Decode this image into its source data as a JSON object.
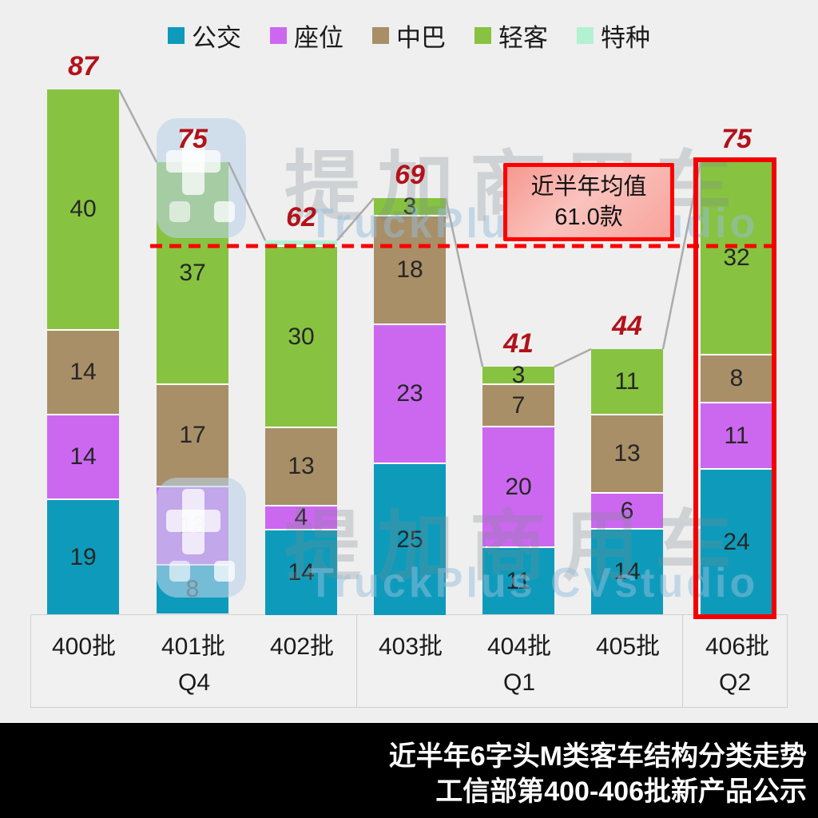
{
  "chart_data": {
    "type": "bar",
    "subtype": "stacked-vertical",
    "categories": [
      "400批",
      "401批",
      "402批",
      "403批",
      "404批",
      "405批",
      "406批"
    ],
    "series": [
      {
        "name": "公交",
        "color": "#0E9BBB",
        "values": [
          19,
          8,
          14,
          25,
          11,
          14,
          24
        ]
      },
      {
        "name": "座位",
        "color": "#CC68F0",
        "values": [
          14,
          13,
          4,
          23,
          20,
          6,
          11
        ]
      },
      {
        "name": "中巴",
        "color": "#A88F67",
        "values": [
          14,
          17,
          13,
          18,
          7,
          13,
          8
        ]
      },
      {
        "name": "轻客",
        "color": "#87C340",
        "values": [
          40,
          37,
          30,
          3,
          3,
          11,
          32
        ]
      },
      {
        "name": "特种",
        "color": "#B4F0D2",
        "values": [
          0,
          0,
          1,
          0,
          0,
          0,
          0
        ]
      }
    ],
    "totals": [
      87,
      75,
      62,
      69,
      41,
      44,
      75
    ],
    "quarter_groups": [
      {
        "label": "Q4",
        "categories": [
          "400批",
          "401批",
          "402批"
        ]
      },
      {
        "label": "Q1",
        "categories": [
          "403批",
          "404批",
          "405批"
        ]
      },
      {
        "label": "Q2",
        "categories": [
          "406批"
        ]
      }
    ],
    "average_line": {
      "value": 61.0,
      "label": "近半年均值",
      "value_label": "61.0款"
    },
    "highlighted_category": "406批",
    "legend_position": "top",
    "ylim": [
      0,
      90
    ],
    "title": "近半年6字头M类客车结构分类走势",
    "subtitle": "工信部第400-406批新产品公示"
  },
  "annotation": {
    "line1": "近半年均值",
    "line2": "61.0款"
  },
  "footer": {
    "line1": "近半年6字头M类客车结构分类走势",
    "line2": "工信部第400-406批新产品公示"
  },
  "watermark": {
    "cn": "提加商用车",
    "en": "TruckPlus CVstudio"
  },
  "colors": {
    "background": "#EFEFEF",
    "total_label": "#B2121A",
    "average_dash": "#FA0000",
    "highlight_border": "#F40000",
    "connector": "#ABABAB",
    "footer_bg": "#000000",
    "footer_text": "#FFFFFF"
  }
}
